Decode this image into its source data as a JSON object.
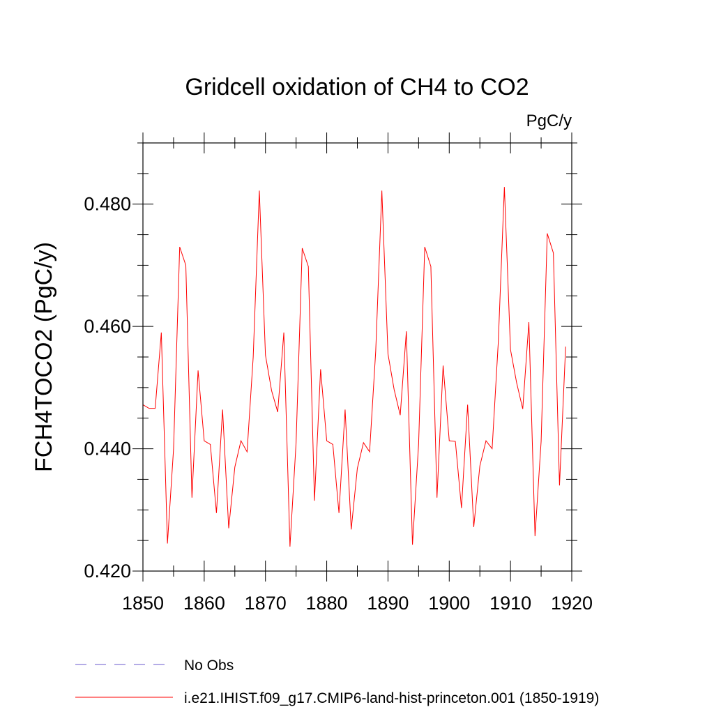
{
  "chart_data": {
    "type": "line",
    "title": "Gridcell oxidation of CH4 to CO2",
    "units": "PgC/y",
    "ylabel": "FCH4TOCO2  (PgC/y)",
    "xlabel": "",
    "xlim": [
      1850,
      1920
    ],
    "ylim": [
      0.42,
      0.49
    ],
    "x_ticks": [
      1850,
      1860,
      1870,
      1880,
      1890,
      1900,
      1910,
      1920
    ],
    "x_tick_labels": [
      "1850",
      "1860",
      "1870",
      "1880",
      "1890",
      "1900",
      "1910",
      "1920"
    ],
    "y_ticks": [
      0.42,
      0.44,
      0.46,
      0.48
    ],
    "y_tick_labels": [
      "0.420",
      "0.440",
      "0.460",
      "0.480"
    ],
    "grid": false,
    "legend_position": "bottom",
    "series": [
      {
        "name": "i.e21.IHIST.f09_g17.CMIP6-land-hist-princeton.001 (1850-1919)",
        "color": "#ff0000",
        "dash": "solid",
        "x": [
          1850,
          1851,
          1852,
          1853,
          1854,
          1855,
          1856,
          1857,
          1858,
          1859,
          1860,
          1861,
          1862,
          1863,
          1864,
          1865,
          1866,
          1867,
          1868,
          1869,
          1870,
          1871,
          1872,
          1873,
          1874,
          1875,
          1876,
          1877,
          1878,
          1879,
          1880,
          1881,
          1882,
          1883,
          1884,
          1885,
          1886,
          1887,
          1888,
          1889,
          1890,
          1891,
          1892,
          1893,
          1894,
          1895,
          1896,
          1897,
          1898,
          1899,
          1900,
          1901,
          1902,
          1903,
          1904,
          1905,
          1906,
          1907,
          1908,
          1909,
          1910,
          1911,
          1912,
          1913,
          1914,
          1915,
          1916,
          1917,
          1918,
          1919
        ],
        "values": [
          0.4472,
          0.4466,
          0.4466,
          0.459,
          0.4245,
          0.44,
          0.473,
          0.47,
          0.432,
          0.4528,
          0.4413,
          0.4407,
          0.4295,
          0.4464,
          0.427,
          0.437,
          0.4413,
          0.4395,
          0.455,
          0.4822,
          0.4553,
          0.4495,
          0.446,
          0.459,
          0.424,
          0.441,
          0.4728,
          0.4698,
          0.4315,
          0.453,
          0.4413,
          0.4407,
          0.4295,
          0.4464,
          0.4268,
          0.4368,
          0.441,
          0.4395,
          0.456,
          0.4822,
          0.4555,
          0.4497,
          0.4455,
          0.4592,
          0.4243,
          0.4408,
          0.473,
          0.4698,
          0.432,
          0.4536,
          0.4413,
          0.4412,
          0.4303,
          0.4472,
          0.4272,
          0.4372,
          0.4413,
          0.44,
          0.4573,
          0.4828,
          0.4562,
          0.4508,
          0.4465,
          0.4607,
          0.4257,
          0.4412,
          0.4752,
          0.472,
          0.434,
          0.4567
        ]
      },
      {
        "name": "No Obs",
        "color": "#6a5acd",
        "dash": "dashed",
        "x": [],
        "values": []
      }
    ]
  }
}
